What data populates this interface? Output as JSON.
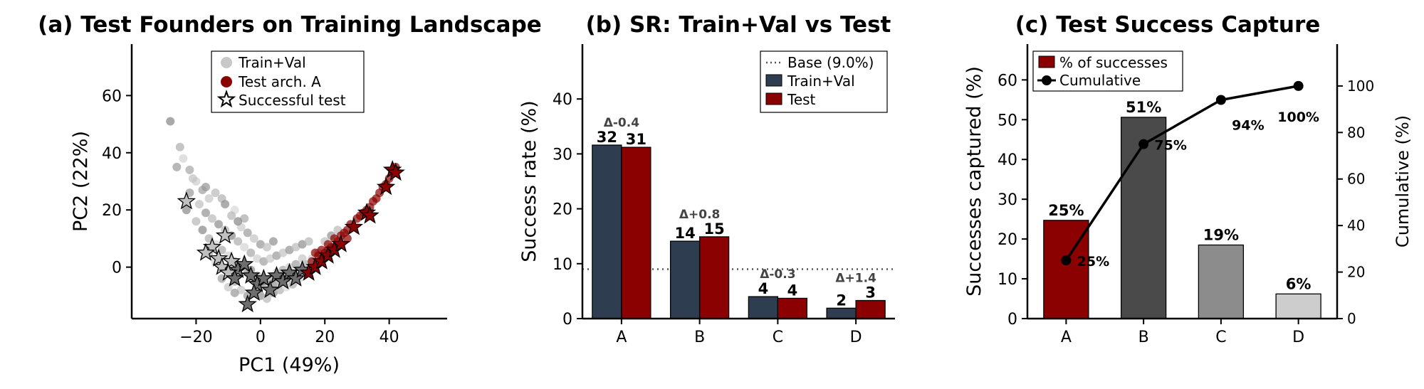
{
  "chart_data": [
    {
      "type": "scatter",
      "title": "(a) Test Founders on Training Landscape",
      "xlabel": "PC1 (49%)",
      "ylabel": "PC2 (22%)",
      "xlim": [
        -40,
        58
      ],
      "ylim": [
        -18,
        78
      ],
      "xticks": [
        -20,
        0,
        20,
        40
      ],
      "yticks": [
        0,
        20,
        40,
        60
      ],
      "legend_position": "top-center",
      "legend": [
        "Train+Val",
        "Test arch. A",
        "Successful test"
      ],
      "colors": {
        "train_val": "#c8c8c8",
        "test_arch_a": "#8b0000",
        "successful_edge": "#000000"
      },
      "series": [
        {
          "name": "Train+Val",
          "points": [
            [
              -28,
              51
            ],
            [
              -25,
              42
            ],
            [
              -24,
              38
            ],
            [
              -22,
              34
            ],
            [
              -20,
              30
            ],
            [
              -18,
              27
            ],
            [
              -16,
              24
            ],
            [
              -22,
              26
            ],
            [
              -19,
              22
            ],
            [
              -17,
              19
            ],
            [
              -15,
              17
            ],
            [
              -13,
              15
            ],
            [
              -11,
              13
            ],
            [
              -9,
              11
            ],
            [
              -7,
              9
            ],
            [
              -5,
              7
            ],
            [
              -3,
              5
            ],
            [
              -1,
              3
            ],
            [
              1,
              2
            ],
            [
              3,
              3
            ],
            [
              5,
              4
            ],
            [
              7,
              5
            ],
            [
              9,
              6
            ],
            [
              11,
              7
            ],
            [
              13,
              8
            ],
            [
              15,
              9
            ],
            [
              -18,
              13
            ],
            [
              -16,
              10
            ],
            [
              -14,
              8
            ],
            [
              -12,
              6
            ],
            [
              -10,
              4
            ],
            [
              -8,
              2
            ],
            [
              -6,
              0
            ],
            [
              -4,
              -2
            ],
            [
              -2,
              -4
            ],
            [
              0,
              -6
            ],
            [
              2,
              -7
            ],
            [
              4,
              -6
            ],
            [
              6,
              -5
            ],
            [
              8,
              -4
            ],
            [
              10,
              -3
            ],
            [
              12,
              -1
            ],
            [
              14,
              1
            ],
            [
              16,
              3
            ],
            [
              18,
              5
            ],
            [
              -6,
              14
            ],
            [
              -4,
              12
            ],
            [
              -2,
              10
            ],
            [
              0,
              8
            ],
            [
              2,
              7
            ],
            [
              4,
              9
            ],
            [
              -20,
              16
            ],
            [
              -23,
              20
            ],
            [
              -12,
              24
            ],
            [
              -8,
              20
            ],
            [
              -5,
              17
            ],
            [
              -14,
              2
            ],
            [
              -16,
              5
            ],
            [
              -10,
              -2
            ],
            [
              -8,
              -5
            ],
            [
              -6,
              -8
            ],
            [
              -4,
              -10
            ],
            [
              -2,
              -9
            ],
            [
              0,
              -10
            ],
            [
              2,
              -11
            ],
            [
              4,
              -9
            ],
            [
              6,
              -8
            ],
            [
              8,
              -7
            ],
            [
              10,
              -6
            ],
            [
              12,
              -4
            ],
            [
              14,
              -2
            ],
            [
              16,
              0
            ],
            [
              -12,
              -4
            ],
            [
              -10,
              -7
            ],
            [
              -8,
              -9
            ],
            [
              20,
              9
            ],
            [
              22,
              11
            ],
            [
              24,
              13
            ],
            [
              -3,
              -1
            ],
            [
              -1,
              -3
            ],
            [
              1,
              -5
            ],
            [
              3,
              -4
            ],
            [
              5,
              -2
            ],
            [
              7,
              -1
            ],
            [
              9,
              0
            ],
            [
              11,
              1
            ],
            [
              13,
              3
            ],
            [
              -26,
              35
            ],
            [
              -21,
              31
            ],
            [
              -17,
              28
            ],
            [
              -14,
              26
            ],
            [
              -11,
              22
            ],
            [
              -9,
              18
            ],
            [
              -7,
              16
            ]
          ]
        },
        {
          "name": "Test arch. A",
          "points": [
            [
              16,
              2
            ],
            [
              18,
              4
            ],
            [
              19,
              6
            ],
            [
              20,
              5
            ],
            [
              21,
              8
            ],
            [
              22,
              7
            ],
            [
              23,
              10
            ],
            [
              24,
              9
            ],
            [
              25,
              11
            ],
            [
              26,
              12
            ],
            [
              27,
              13
            ],
            [
              28,
              15
            ],
            [
              29,
              14
            ],
            [
              30,
              17
            ],
            [
              31,
              18
            ],
            [
              32,
              19
            ],
            [
              33,
              20
            ],
            [
              34,
              21
            ],
            [
              35,
              23
            ],
            [
              36,
              24
            ],
            [
              37,
              26
            ],
            [
              38,
              28
            ],
            [
              39,
              29
            ],
            [
              40,
              31
            ],
            [
              41,
              33
            ],
            [
              42,
              35
            ],
            [
              17,
              5
            ],
            [
              19,
              3
            ],
            [
              21,
              6
            ],
            [
              23,
              7
            ],
            [
              25,
              8
            ],
            [
              27,
              10
            ]
          ]
        },
        {
          "name": "Successful test",
          "points": [
            [
              -23,
              23
            ],
            [
              -11,
              11
            ],
            [
              -15,
              7
            ],
            [
              -17,
              5
            ],
            [
              -13,
              3
            ],
            [
              -12,
              0
            ],
            [
              -9,
              2
            ],
            [
              -7,
              -1
            ],
            [
              -5,
              1
            ],
            [
              -3,
              -3
            ],
            [
              -1,
              -6
            ],
            [
              1,
              -4
            ],
            [
              3,
              -8
            ],
            [
              5,
              -3
            ],
            [
              -4,
              -13
            ],
            [
              -2,
              -9
            ],
            [
              7,
              -5
            ],
            [
              9,
              -2
            ],
            [
              11,
              -4
            ],
            [
              13,
              -1
            ],
            [
              15,
              -2
            ],
            [
              17,
              0
            ],
            [
              19,
              2
            ],
            [
              21,
              4
            ],
            [
              23,
              6
            ],
            [
              25,
              8
            ],
            [
              -10,
              -2
            ],
            [
              -8,
              -4
            ],
            [
              29,
              14
            ],
            [
              33,
              19
            ],
            [
              34,
              18
            ],
            [
              39,
              28
            ],
            [
              41,
              34
            ],
            [
              42,
              33
            ]
          ]
        }
      ]
    },
    {
      "type": "bar",
      "title": "(b) SR: Train+Val vs Test",
      "xlabel": "",
      "ylabel": "Success rate (%)",
      "ylim": [
        0,
        50
      ],
      "yticks": [
        0,
        10,
        20,
        30,
        40
      ],
      "categories": [
        "A",
        "B",
        "C",
        "D"
      ],
      "series": [
        {
          "name": "Train+Val",
          "values": [
            31.6,
            14.1,
            4.0,
            1.9
          ],
          "labels": [
            "32",
            "14",
            "4",
            "2"
          ],
          "color": "#2e3e50"
        },
        {
          "name": "Test",
          "values": [
            31.2,
            14.9,
            3.7,
            3.3
          ],
          "labels": [
            "31",
            "15",
            "4",
            "3"
          ],
          "color": "#8b0000"
        }
      ],
      "baseline": {
        "value": 9.0,
        "label": "Base (9.0%)"
      },
      "deltas": [
        "Δ-0.4",
        "Δ+0.8",
        "Δ-0.3",
        "Δ+1.4"
      ],
      "legend_position": "top-right"
    },
    {
      "type": "bar",
      "title": "(c) Test Success Capture",
      "xlabel": "",
      "ylabel": "Successes captured (%)",
      "ylabel_right": "Cumulative (%)",
      "ylim": [
        0,
        69
      ],
      "yticks": [
        0,
        10,
        20,
        30,
        40,
        50,
        60
      ],
      "ylim_right": [
        0,
        118
      ],
      "yticks_right": [
        0,
        20,
        40,
        60,
        80,
        100
      ],
      "categories": [
        "A",
        "B",
        "C",
        "D"
      ],
      "series": [
        {
          "name": "% of successes",
          "values": [
            24.7,
            50.6,
            18.5,
            6.2
          ],
          "labels": [
            "25%",
            "51%",
            "19%",
            "6%"
          ],
          "colors": [
            "#8b0000",
            "#4a4a4a",
            "#8c8c8c",
            "#cdcdcd"
          ]
        },
        {
          "name": "Cumulative",
          "values": [
            25,
            75,
            94,
            100
          ],
          "labels": [
            "25%",
            "75%",
            "94%",
            "100%"
          ],
          "color": "#000000"
        }
      ],
      "legend_position": "top-left"
    }
  ]
}
